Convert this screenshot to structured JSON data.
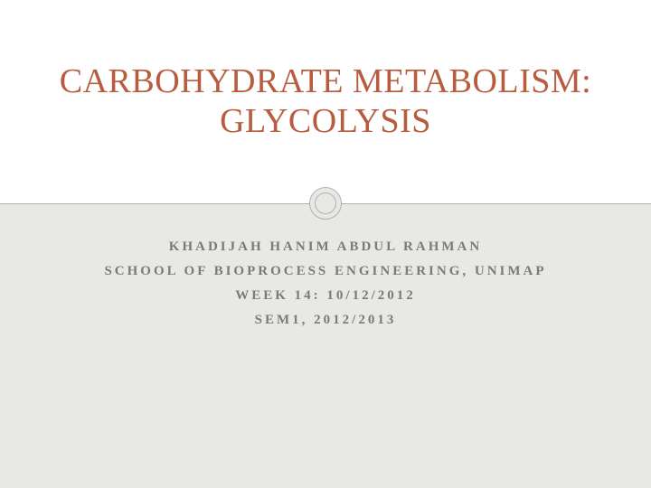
{
  "slide": {
    "title": "CARBOHYDRATE METABOLISM: GLYCOLYSIS",
    "title_color": "#b75c3e",
    "title_fontsize": 38,
    "subtitle_lines": [
      "KHADIJAH HANIM ABDUL RAHMAN",
      "SCHOOL OF BIOPROCESS ENGINEERING, UNIMAP",
      "WEEK 14: 10/12/2012",
      "SEM1, 2012/2013"
    ],
    "subtitle_color": "#7a7a7a",
    "subtitle_fontsize": 15,
    "subtitle_letter_spacing": 3,
    "top_background": "#ffffff",
    "bottom_background": "#e8e8e5",
    "divider_color": "#b0b0ac",
    "circle_fill": "#e8e8e5"
  }
}
